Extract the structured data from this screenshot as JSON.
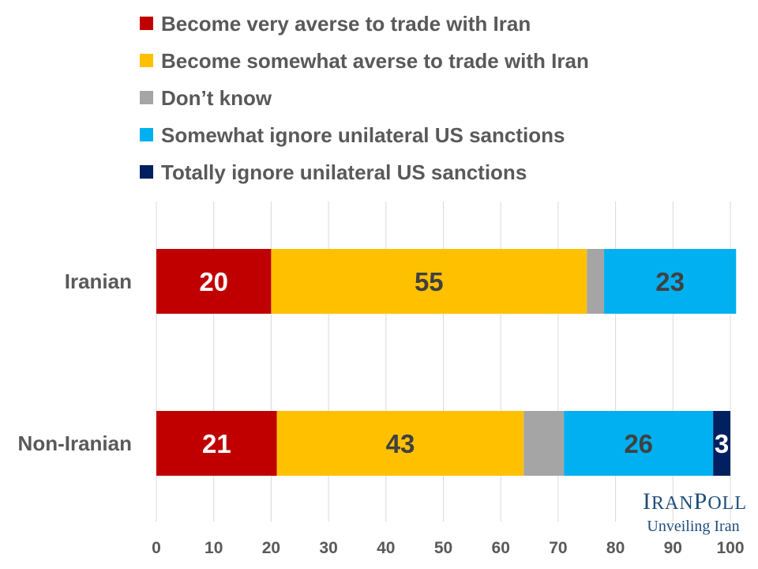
{
  "chart_data": {
    "type": "bar",
    "orientation": "horizontal",
    "stacked": true,
    "categories": [
      "Iranian",
      "Non-Iranian"
    ],
    "series": [
      {
        "name": "Become very averse to trade with Iran",
        "color": "#c00000",
        "label_color": "#ffffff",
        "values": [
          20,
          21
        ]
      },
      {
        "name": "Become somewhat averse to trade with Iran",
        "color": "#ffc000",
        "label_color": "#404040",
        "values": [
          55,
          43
        ]
      },
      {
        "name": "Don’t know",
        "color": "#a5a5a5",
        "label_color": "#404040",
        "values": [
          3,
          7
        ]
      },
      {
        "name": "Somewhat ignore unilateral US sanctions",
        "color": "#00b0f0",
        "label_color": "#404040",
        "values": [
          23,
          26
        ]
      },
      {
        "name": "Totally ignore unilateral US sanctions",
        "color": "#002060",
        "label_color": "#ffffff",
        "values": [
          0,
          3
        ]
      }
    ],
    "data_labels": [
      [
        "20",
        "55",
        "",
        "23",
        ""
      ],
      [
        "21",
        "43",
        "",
        "26",
        "3"
      ]
    ],
    "xlim": [
      0,
      100
    ],
    "xticks": [
      0,
      10,
      20,
      30,
      40,
      50,
      60,
      70,
      80,
      90,
      100
    ],
    "grid": true,
    "legend_position": "top"
  },
  "logo": {
    "name": "IranPoll",
    "tagline": "Unveiling Iran",
    "color": "#1f4e79"
  }
}
